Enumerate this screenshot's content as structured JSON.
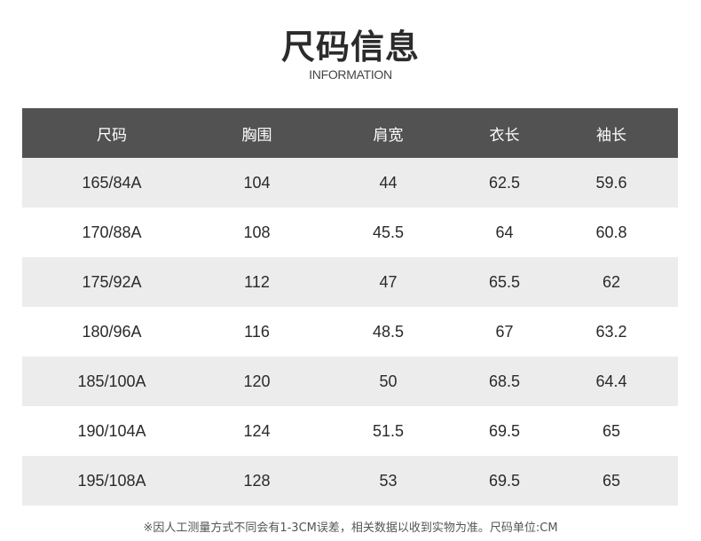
{
  "title": "尺码信息",
  "subtitle": "INFORMATION",
  "table": {
    "headers": [
      "尺码",
      "胸围",
      "肩宽",
      "衣长",
      "袖长"
    ],
    "rows": [
      [
        "165/84A",
        "104",
        "44",
        "62.5",
        "59.6"
      ],
      [
        "170/88A",
        "108",
        "45.5",
        "64",
        "60.8"
      ],
      [
        "175/92A",
        "112",
        "47",
        "65.5",
        "62"
      ],
      [
        "180/96A",
        "116",
        "48.5",
        "67",
        "63.2"
      ],
      [
        "185/100A",
        "120",
        "50",
        "68.5",
        "64.4"
      ],
      [
        "190/104A",
        "124",
        "51.5",
        "69.5",
        "65"
      ],
      [
        "195/108A",
        "128",
        "53",
        "69.5",
        "65"
      ]
    ]
  },
  "note": "※因人工测量方式不同会有1-3CM误差，相关数据以收到实物为准。尺码单位:CM",
  "colors": {
    "header_bg": "#525252",
    "stripe_bg": "#ececec"
  }
}
